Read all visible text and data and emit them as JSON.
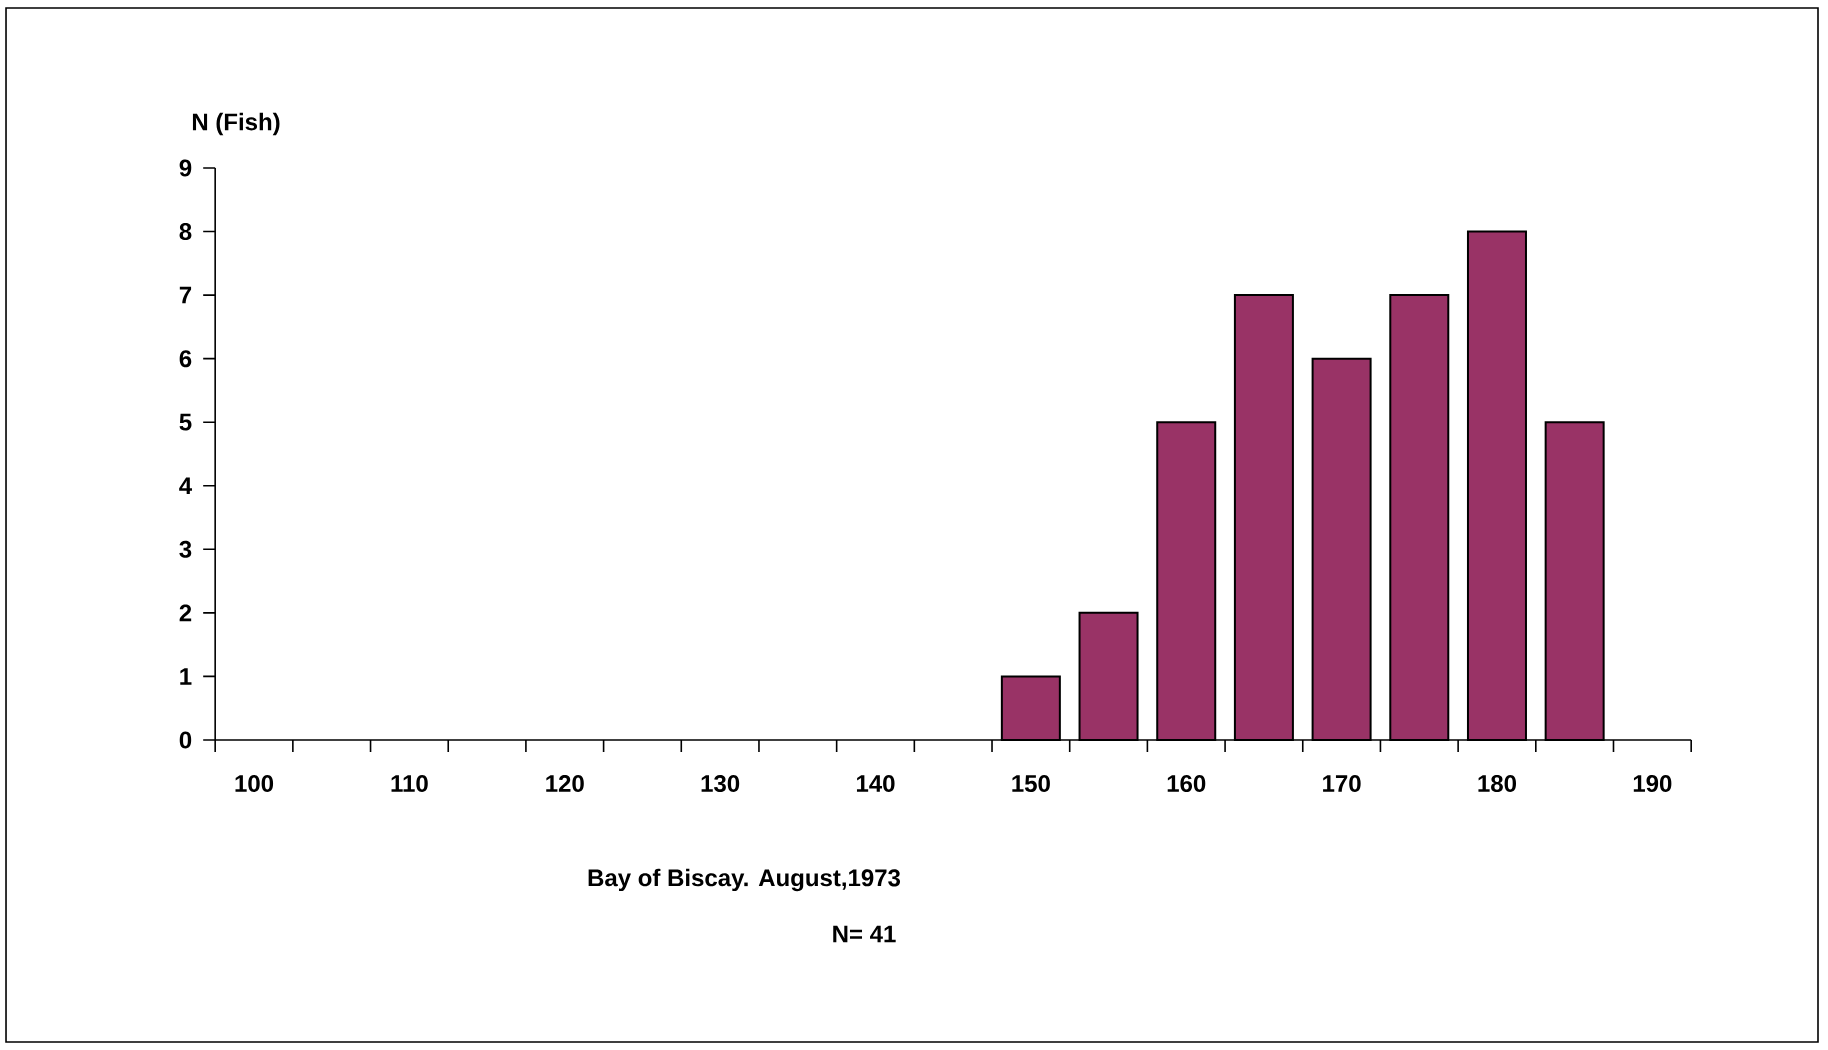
{
  "chart_data": {
    "type": "bar",
    "xlabel": "Bay of Biscay.  August,1973",
    "ylabel": "N (Fish)",
    "annotations": [
      "N= 41"
    ],
    "categories": [
      "100",
      null,
      "110",
      null,
      "120",
      null,
      "130",
      null,
      "140",
      null,
      "150",
      null,
      "160",
      null,
      "170",
      null,
      "180",
      null,
      "190"
    ],
    "values": [
      null,
      null,
      null,
      null,
      null,
      null,
      null,
      null,
      null,
      null,
      1,
      2,
      5,
      7,
      6,
      7,
      8,
      5,
      null
    ],
    "color": "#993366",
    "ylim": [
      0,
      9
    ],
    "yticks": [
      0,
      1,
      2,
      3,
      4,
      5,
      6,
      7,
      8,
      9
    ],
    "grid": false
  }
}
